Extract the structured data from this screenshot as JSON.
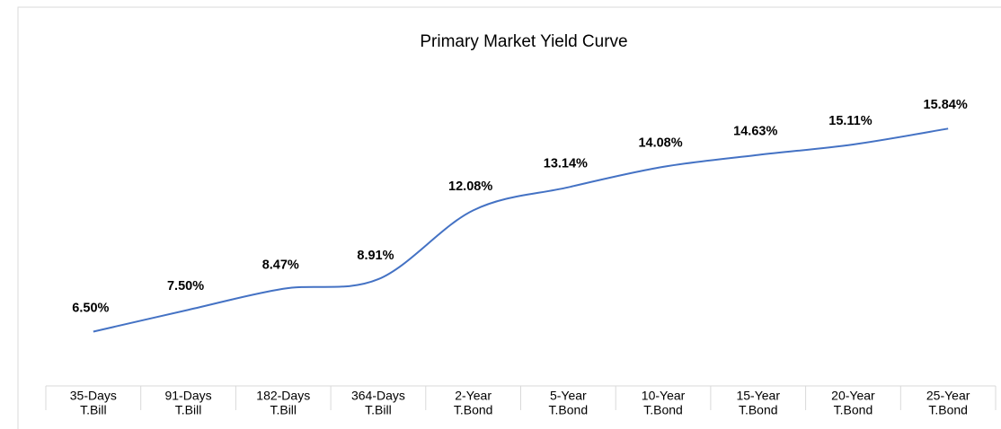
{
  "chart_data": {
    "type": "line",
    "title": "Primary Market Yield Curve",
    "categories": [
      [
        "35-Days",
        "T.Bill"
      ],
      [
        "91-Days",
        "T.Bill"
      ],
      [
        "182-Days",
        "T.Bill"
      ],
      [
        "364-Days",
        "T.Bill"
      ],
      [
        "2-Year",
        "T.Bond"
      ],
      [
        "5-Year",
        "T.Bond"
      ],
      [
        "10-Year",
        "T.Bond"
      ],
      [
        "15-Year",
        "T.Bond"
      ],
      [
        "20-Year",
        "T.Bond"
      ],
      [
        "25-Year",
        "T.Bond"
      ]
    ],
    "values": [
      6.5,
      7.5,
      8.47,
      8.91,
      12.08,
      13.14,
      14.08,
      14.63,
      15.11,
      15.84
    ],
    "value_labels": [
      "6.50%",
      "7.50%",
      "8.47%",
      "8.91%",
      "12.08%",
      "13.14%",
      "14.08%",
      "14.63%",
      "15.11%",
      "15.84%"
    ],
    "color": "#4472c4",
    "smooth": true,
    "ylim": [
      4,
      18
    ]
  }
}
